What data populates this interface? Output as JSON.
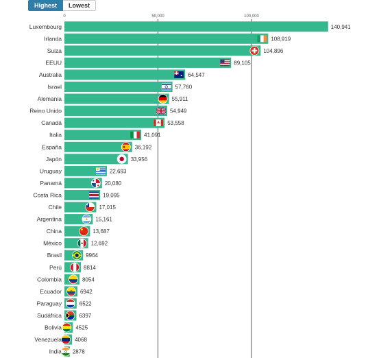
{
  "toggle": {
    "highest_label": "Highest",
    "lowest_label": "Lowest",
    "selected": "Highest"
  },
  "colors": {
    "bar": "#35b88d",
    "grid": "#555555",
    "active_button": "#2f7ea8",
    "text": "#333333"
  },
  "chart_data": {
    "type": "bar",
    "orientation": "horizontal",
    "title": "",
    "xlabel": "",
    "ylabel": "",
    "xlim": [
      0,
      145000
    ],
    "x_ticks": [
      0,
      50000,
      100000
    ],
    "x_tick_labels": [
      "0",
      "50,000",
      "100,000"
    ],
    "grid": true,
    "categories": [
      "Luxembourg",
      "Irlanda",
      "Suiza",
      "EEUU",
      "Australia",
      "Israel",
      "Alemania",
      "Reino Unido",
      "Canadá",
      "Italia",
      "España",
      "Japón",
      "Uruguay",
      "Panamá",
      "Costa Rica",
      "Chile",
      "Argentina",
      "China",
      "México",
      "Brasil",
      "Perú",
      "Colombia",
      "Ecuador",
      "Paraguay",
      "Sudáfrica",
      "Bolivia",
      "Venezuela",
      "India"
    ],
    "values": [
      140941,
      108919,
      104896,
      89105,
      64547,
      57760,
      55911,
      54949,
      53558,
      41091,
      36192,
      33956,
      22693,
      20080,
      19095,
      17015,
      15161,
      13687,
      12692,
      9964,
      8814,
      8054,
      6942,
      6522,
      6397,
      4525,
      4068,
      2878
    ],
    "value_labels": [
      "140,941",
      "108,919",
      "104,896",
      "89,105",
      "64,547",
      "57,760",
      "55,911",
      "54,949",
      "53,558",
      "41,091",
      "36,192",
      "33,956",
      "22,693",
      "20,080",
      "19,095",
      "17,015",
      "15,161",
      "13,687",
      "12,692",
      "9964",
      "8814",
      "8054",
      "6942",
      "6522",
      "6397",
      "4525",
      "4068",
      "2878"
    ],
    "flag_icons": [
      "luxembourg-flag-icon",
      "ireland-flag-icon",
      "switzerland-flag-icon",
      "usa-flag-icon",
      "australia-flag-icon",
      "israel-flag-icon",
      "germany-flag-icon",
      "uk-flag-icon",
      "canada-flag-icon",
      "italy-flag-icon",
      "spain-flag-icon",
      "japan-flag-icon",
      "uruguay-flag-icon",
      "panama-flag-icon",
      "costa-rica-flag-icon",
      "chile-flag-icon",
      "argentina-flag-icon",
      "china-flag-icon",
      "mexico-flag-icon",
      "brazil-flag-icon",
      "peru-flag-icon",
      "colombia-flag-icon",
      "ecuador-flag-icon",
      "paraguay-flag-icon",
      "south-africa-flag-icon",
      "bolivia-flag-icon",
      "venezuela-flag-icon",
      "india-flag-icon"
    ]
  }
}
